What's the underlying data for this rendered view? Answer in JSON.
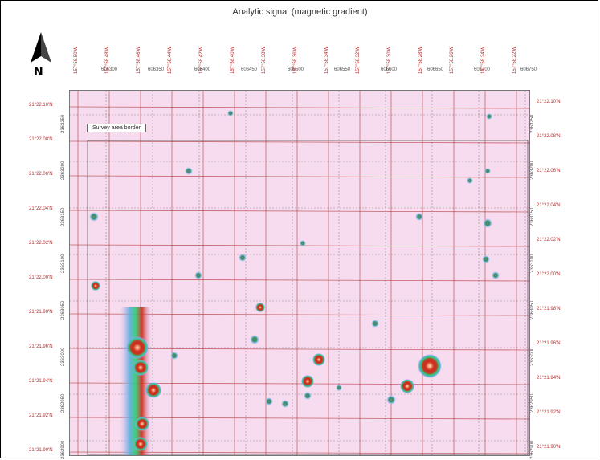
{
  "title": "Analytic signal (magnetic gradient)",
  "north_label": "N",
  "survey_label": "Survey area border",
  "lon_labels": [
    "157°58.50'W",
    "157°58.48'W",
    "157°58.46'W",
    "157°58.44'W",
    "157°58.42'W",
    "157°58.40'W",
    "157°58.38'W",
    "157°58.36'W",
    "157°58.34'W",
    "157°58.32'W",
    "157°58.30'W",
    "157°58.28'W",
    "157°58.26'W",
    "157°58.24'W",
    "157°58.22'W"
  ],
  "easting_labels": [
    "606300",
    "606350",
    "606400",
    "606450",
    "606500",
    "606550",
    "606600",
    "606650",
    "606700",
    "606750"
  ],
  "lat_left": [
    "21°22.10'N",
    "21°22.08'N",
    "21°22.06'N",
    "21°22.04'N",
    "21°22.02'N",
    "21°22.00'N",
    "21°21.98'N",
    "21°21.96'N",
    "21°21.94'N",
    "21°21.92'N",
    "21°21.90'N"
  ],
  "lat_right": [
    "21°22.10'N",
    "21°22.08'N",
    "21°22.06'N",
    "21°22.04'N",
    "21°22.02'N",
    "21°22.00'N",
    "21°21.98'N",
    "21°21.96'N",
    "21°21.94'N",
    "21°21.92'N",
    "21°21.90'N"
  ],
  "northing_left": [
    "2363250",
    "2363200",
    "2363150",
    "2363100",
    "2363050",
    "2363000",
    "2362950",
    "2362900"
  ],
  "northing_right": [
    "2363250",
    "2363200",
    "2363150",
    "2363100",
    "2363050",
    "2363000",
    "2362950",
    "2362900"
  ],
  "colors": {
    "background": "#f7dcef",
    "grid_red": "#b03a3a",
    "grid_dash": "#555555",
    "anomaly": "#d12a1a"
  }
}
